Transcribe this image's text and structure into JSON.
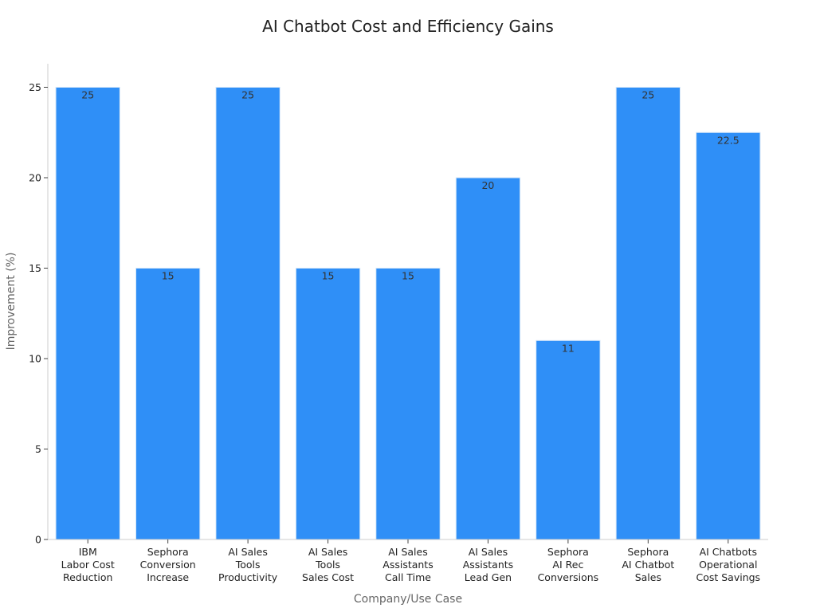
{
  "chart_data": {
    "type": "bar",
    "title": "AI Chatbot Cost and Efficiency Gains",
    "xlabel": "Company/Use Case",
    "ylabel": "Improvement (%)",
    "categories": [
      [
        "IBM",
        "Labor Cost",
        "Reduction"
      ],
      [
        "Sephora",
        "Conversion",
        "Increase"
      ],
      [
        "AI Sales",
        "Tools",
        "Productivity"
      ],
      [
        "AI Sales",
        "Tools",
        "Sales Cost"
      ],
      [
        "AI Sales",
        "Assistants",
        "Call Time"
      ],
      [
        "AI Sales",
        "Assistants",
        "Lead Gen"
      ],
      [
        "Sephora",
        "AI Rec",
        "Conversions"
      ],
      [
        "Sephora",
        "AI Chatbot",
        "Sales"
      ],
      [
        "AI Chatbots",
        "Operational",
        "Cost Savings"
      ]
    ],
    "values": [
      25,
      15,
      25,
      15,
      15,
      20,
      11,
      25,
      22.5
    ],
    "data_labels": [
      "25",
      "15",
      "25",
      "15",
      "15",
      "20",
      "11",
      "25",
      "22.5"
    ],
    "ylim": [
      0,
      26.3
    ],
    "yticks": [
      0,
      5,
      10,
      15,
      20,
      25
    ],
    "grid": false,
    "legend": "none",
    "bar_color": "#2f8ff7"
  }
}
